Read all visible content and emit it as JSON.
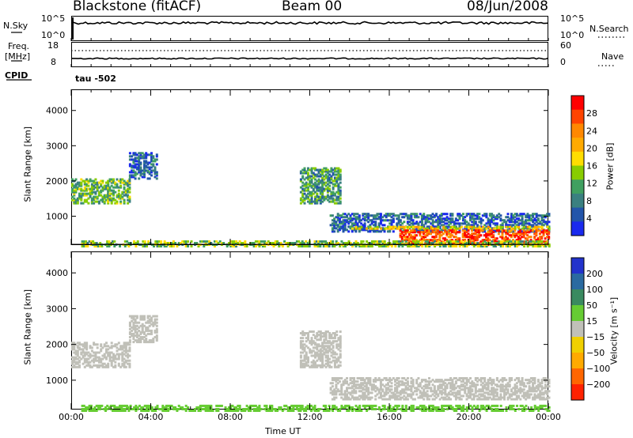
{
  "header": {
    "station": "Blackstone (fitACF)",
    "beam": "Beam 00",
    "date": "08/Jun/2008"
  },
  "strip": {
    "nsky_label": "N.Sky",
    "nsky_ticks": [
      "10^5",
      "10^0"
    ],
    "nsearch_label": "N.Search",
    "nsearch_ticks": [
      "10^5",
      "10^0"
    ],
    "freq_label_line1": "Freq.",
    "freq_label_line2": "[MHz]",
    "freq_ticks": [
      "18",
      "8"
    ],
    "nave_label": "Nave",
    "nave_ticks": [
      "60",
      "0"
    ],
    "cpid_label": "CPID",
    "cpid_text": "tau -502"
  },
  "panels": {
    "power": {
      "ylabel": "Slant Range [km]",
      "colorbar_label": "Power [dB]",
      "colorbar_ticks": [
        "28",
        "24",
        "20",
        "16",
        "12",
        "8",
        "4"
      ],
      "colorbar_colors": [
        "#ff0000",
        "#ff4400",
        "#ff8800",
        "#ffaa00",
        "#ffdd00",
        "#88cc00",
        "#40a060",
        "#3a8080",
        "#2255aa",
        "#1a2aee"
      ]
    },
    "velocity": {
      "ylabel": "Slant Range [km]",
      "colorbar_label": "Velocity [m s⁻¹]",
      "colorbar_ticks": [
        "200",
        "100",
        "50",
        "15",
        "−15",
        "−50",
        "−100",
        "−200"
      ],
      "colorbar_colors": [
        "#2233cc",
        "#2a6aa0",
        "#3a8a60",
        "#66cc33",
        "#c0c0b8",
        "#f0d000",
        "#ffaa00",
        "#ff6600",
        "#ff2200"
      ]
    }
  },
  "xaxis": {
    "label": "Time UT",
    "ticks": [
      "00:00",
      "04:00",
      "08:00",
      "12:00",
      "16:00",
      "20:00",
      "00:00"
    ]
  },
  "chart_data": [
    {
      "type": "heatmap",
      "title": "Blackstone (fitACF) Beam 00 08/Jun/2008",
      "xlabel": "Time UT",
      "ylabel": "Slant Range [km]",
      "xlim": [
        0,
        24
      ],
      "ylim": [
        180,
        4600
      ],
      "yticks": [
        1000,
        2000,
        3000,
        4000
      ],
      "colorbar": {
        "label": "Power [dB]",
        "range": [
          0,
          32
        ],
        "ticks": [
          4,
          8,
          12,
          16,
          20,
          24,
          28
        ]
      },
      "regions": [
        {
          "t": [
            0.0,
            2.9
          ],
          "range_km": [
            1400,
            2100
          ],
          "value": 12
        },
        {
          "t": [
            2.9,
            4.3
          ],
          "range_km": [
            2100,
            2850
          ],
          "value": 6
        },
        {
          "t": [
            11.5,
            13.5
          ],
          "range_km": [
            1400,
            2400
          ],
          "value": 10
        },
        {
          "t": [
            13.0,
            24.0
          ],
          "range_km": [
            600,
            1100
          ],
          "value": 6
        },
        {
          "t": [
            14.0,
            24.0
          ],
          "range_km": [
            680,
            760
          ],
          "value": 18
        },
        {
          "t": [
            16.5,
            24.0
          ],
          "range_km": [
            220,
            650
          ],
          "value": 27
        },
        {
          "t": [
            0.5,
            24.0
          ],
          "range_km": [
            180,
            320
          ],
          "value": 14
        }
      ]
    },
    {
      "type": "heatmap",
      "title": "",
      "xlabel": "Time UT",
      "ylabel": "Slant Range [km]",
      "xlim": [
        0,
        24
      ],
      "ylim": [
        180,
        4600
      ],
      "yticks": [
        1000,
        2000,
        3000,
        4000
      ],
      "colorbar": {
        "label": "Velocity [m s^-1]",
        "range": [
          -200,
          200
        ],
        "ticks": [
          200,
          100,
          50,
          15,
          -15,
          -50,
          -100,
          -200
        ]
      },
      "regions": [
        {
          "t": [
            0.0,
            2.9
          ],
          "range_km": [
            1400,
            2100
          ],
          "value": 0
        },
        {
          "t": [
            2.9,
            4.3
          ],
          "range_km": [
            2100,
            2850
          ],
          "value": 0
        },
        {
          "t": [
            11.5,
            13.5
          ],
          "range_km": [
            1400,
            2400
          ],
          "value": 0
        },
        {
          "t": [
            13.0,
            24.0
          ],
          "range_km": [
            500,
            1100
          ],
          "value": 0
        },
        {
          "t": [
            0.5,
            24.0
          ],
          "range_km": [
            180,
            320
          ],
          "value": 40
        }
      ]
    }
  ]
}
